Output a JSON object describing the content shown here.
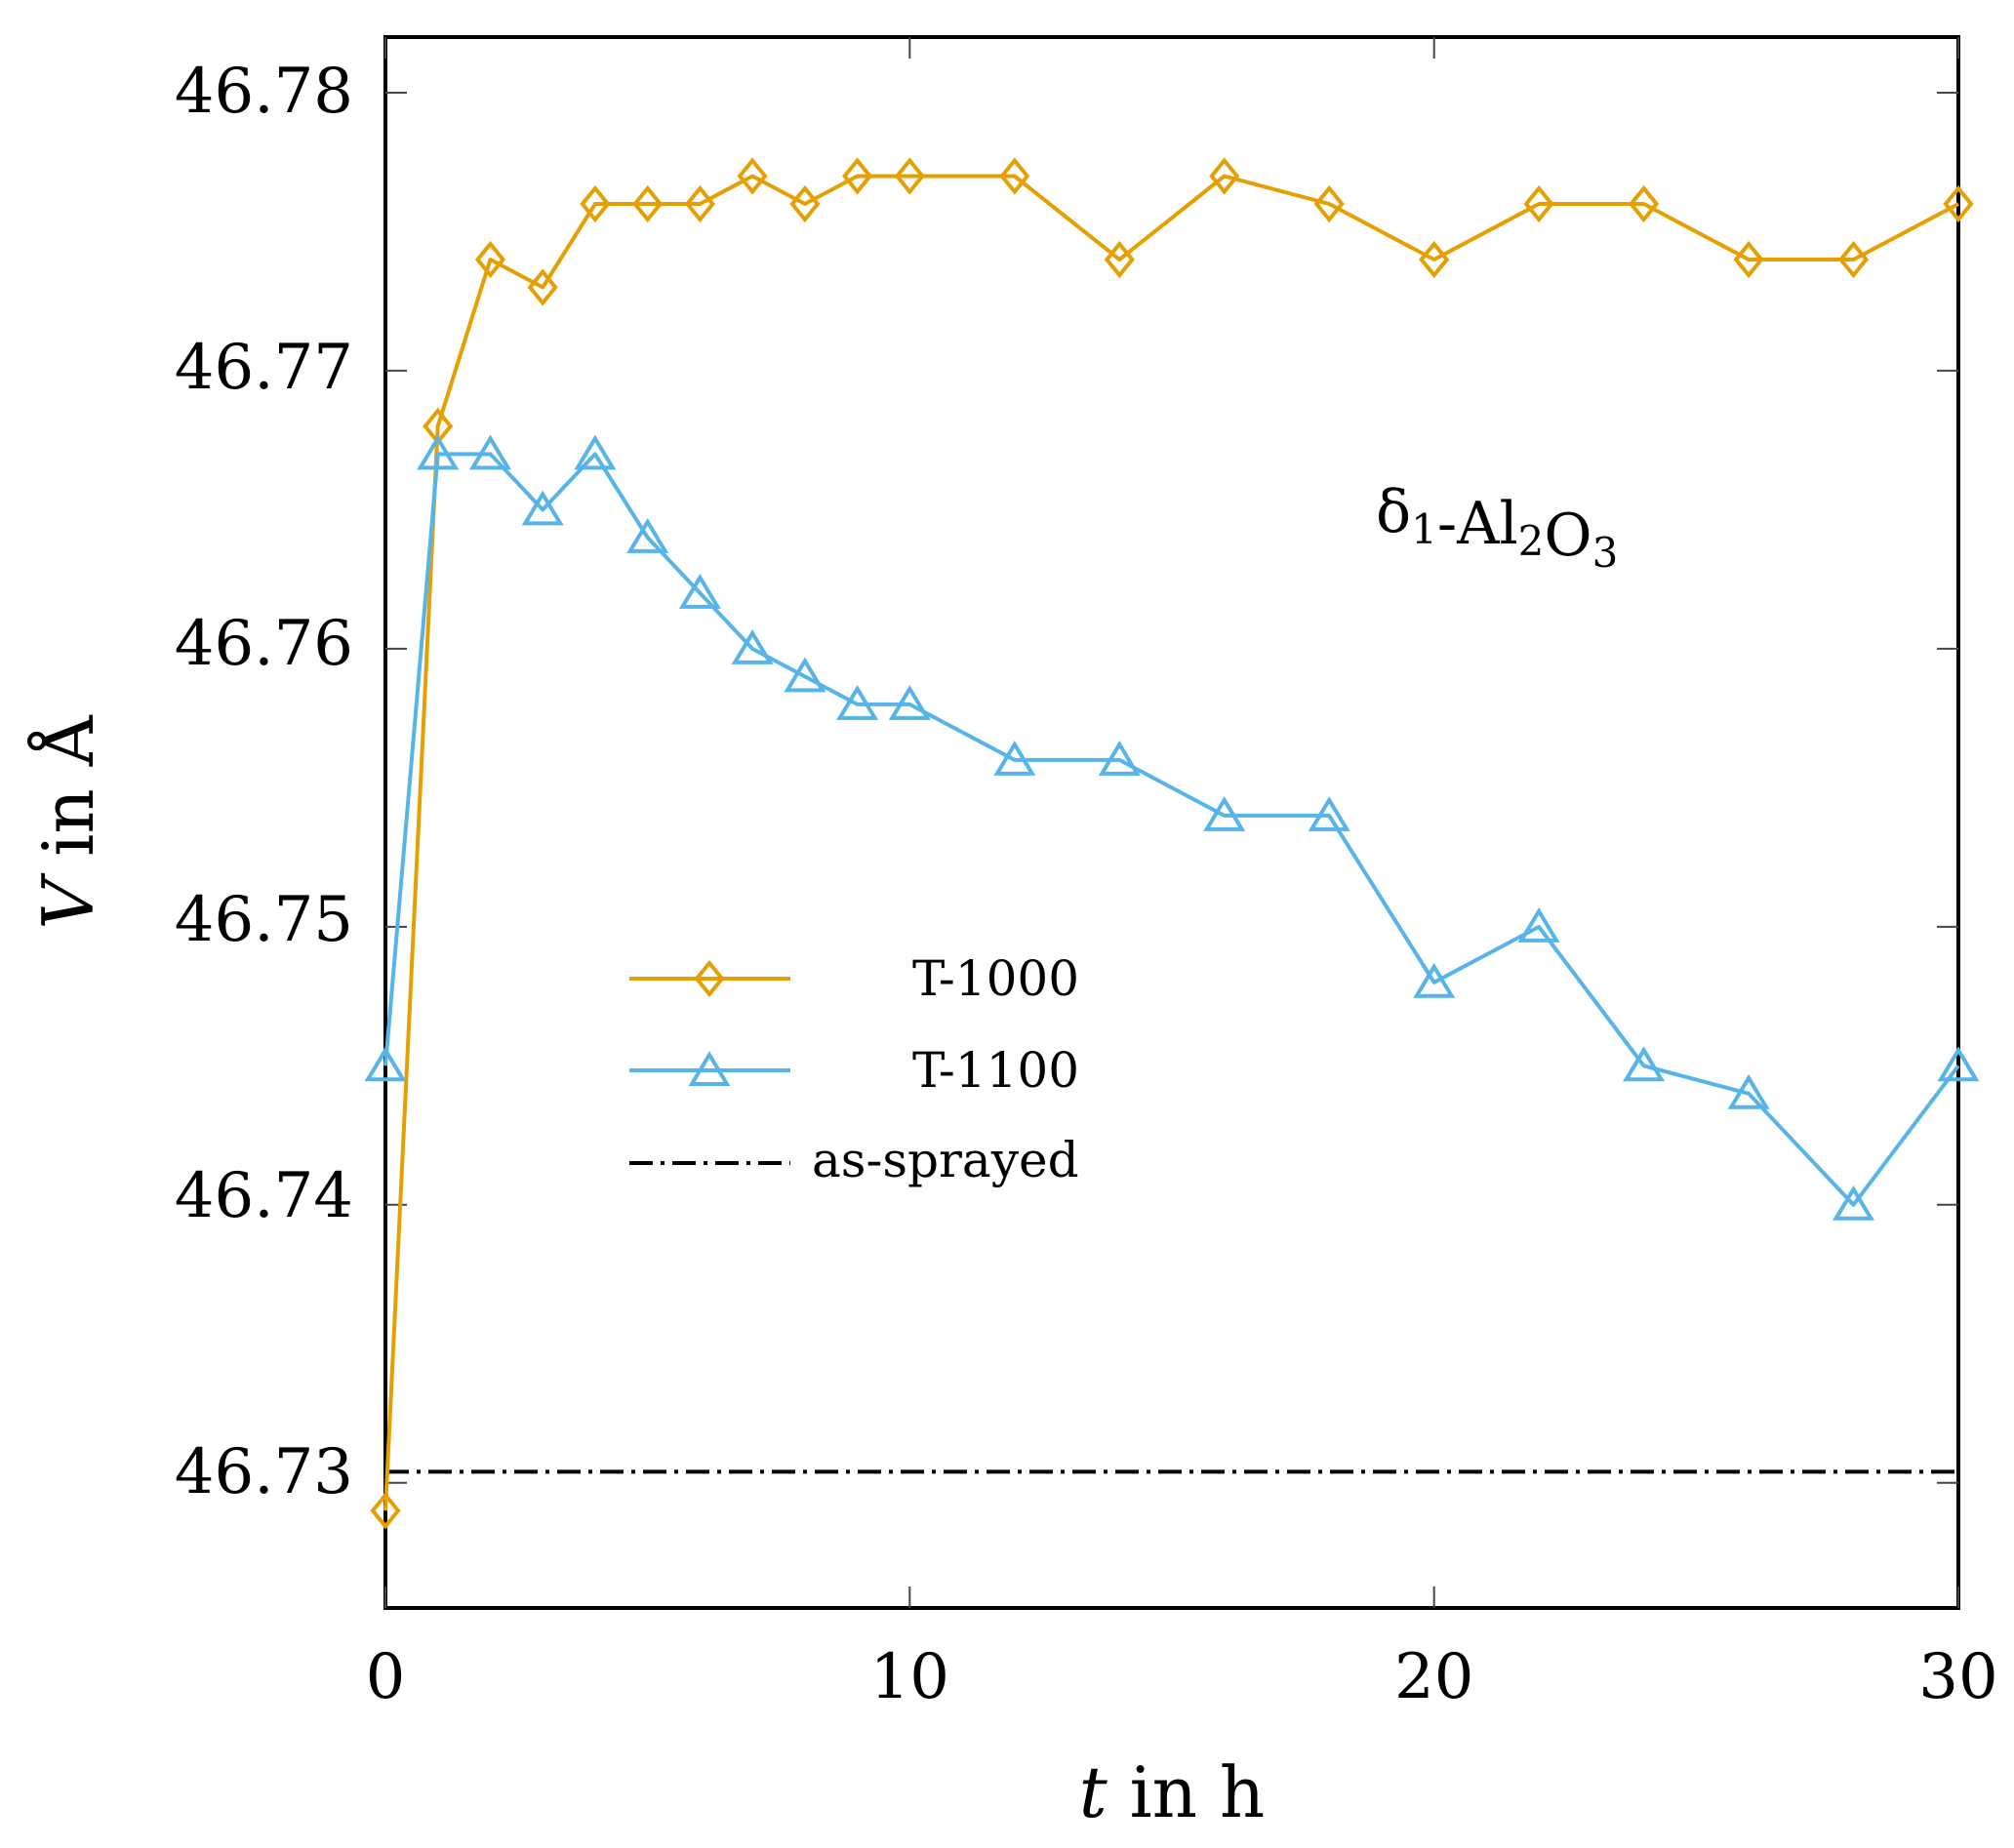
{
  "chart_data": {
    "type": "line",
    "title": "",
    "xlabel": {
      "var": "t",
      "rest": " in h"
    },
    "ylabel": {
      "var": "V",
      "rest": " in Å"
    },
    "xlim": [
      0,
      30
    ],
    "ylim": [
      46.7255,
      46.782
    ],
    "xticks": [
      0,
      10,
      20,
      30
    ],
    "xtick_labels": [
      "0",
      "10",
      "20",
      "30"
    ],
    "yticks": [
      46.73,
      46.74,
      46.75,
      46.76,
      46.77,
      46.78
    ],
    "ytick_labels": [
      "46.73",
      "46.74",
      "46.75",
      "46.76",
      "46.77",
      "46.78"
    ],
    "grid": false,
    "legend_position": "center-left",
    "annotation": {
      "text": "δ1-Al2O3"
    },
    "series": [
      {
        "name": "T-1000",
        "color": "#E69F00",
        "marker": "diamond",
        "x": [
          0,
          1,
          2,
          3,
          4,
          5,
          6,
          7,
          8,
          9,
          10,
          12,
          14,
          16,
          18,
          20,
          22,
          24,
          26,
          28,
          30
        ],
        "y": [
          46.729,
          46.768,
          46.774,
          46.773,
          46.776,
          46.776,
          46.776,
          46.777,
          46.776,
          46.777,
          46.777,
          46.777,
          46.774,
          46.777,
          46.776,
          46.774,
          46.776,
          46.776,
          46.774,
          46.774,
          46.776
        ]
      },
      {
        "name": "T-1100",
        "color": "#56B4E9",
        "marker": "triangle",
        "x": [
          0,
          1,
          2,
          3,
          4,
          5,
          6,
          7,
          8,
          9,
          10,
          12,
          14,
          16,
          18,
          20,
          22,
          24,
          26,
          28,
          30
        ],
        "y": [
          46.745,
          46.767,
          46.767,
          46.765,
          46.767,
          46.764,
          46.762,
          46.76,
          46.759,
          46.758,
          46.758,
          46.756,
          46.756,
          46.754,
          46.754,
          46.748,
          46.75,
          46.745,
          46.744,
          46.74,
          46.745
        ]
      },
      {
        "name": "as-sprayed",
        "color": "#000000",
        "style": "dashdot",
        "y_constant": 46.7304
      }
    ]
  }
}
